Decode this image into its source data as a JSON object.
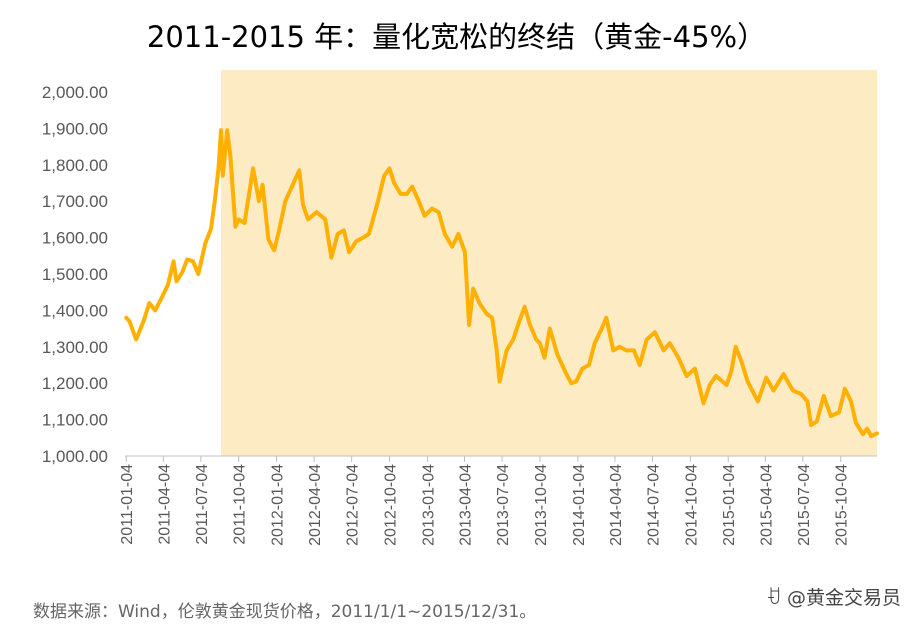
{
  "title": "2011-2015 年：量化宽松的终结（黄金-45%）",
  "source_note": "数据来源：Wind，伦敦黄金现货价格，2011/1/1~2015/12/31。",
  "watermark": "@黄金交易员",
  "colors": {
    "line": "#FFB000",
    "highlight": "#FDEBC4",
    "axis": "#BFBFBF",
    "text": "#595959"
  },
  "chart_data": {
    "type": "line",
    "title": "2011-2015 年：量化宽松的终结（黄金-45%）",
    "xlabel": "",
    "ylabel": "",
    "ylim": [
      1000,
      2000
    ],
    "yticks": [
      1000,
      1100,
      1200,
      1300,
      1400,
      1500,
      1600,
      1700,
      1800,
      1900,
      2000
    ],
    "ytick_labels": [
      "1,000.00",
      "1,100.00",
      "1,200.00",
      "1,300.00",
      "1,400.00",
      "1,500.00",
      "1,600.00",
      "1,700.00",
      "1,800.00",
      "1,900.00",
      "2,000.00"
    ],
    "x_start": "2011-01-01",
    "x_end": "2015-12-31",
    "xtick_labels": [
      "2011-01-04",
      "2011-04-04",
      "2011-07-04",
      "2011-10-04",
      "2012-01-04",
      "2012-04-04",
      "2012-07-04",
      "2012-10-04",
      "2013-01-04",
      "2013-04-04",
      "2013-07-04",
      "2013-10-04",
      "2014-01-04",
      "2014-04-04",
      "2014-07-04",
      "2014-10-04",
      "2015-01-04",
      "2015-04-04",
      "2015-07-04",
      "2015-10-04"
    ],
    "highlight_range": [
      "2011-08-22",
      "2015-12-31"
    ],
    "series": [
      {
        "name": "伦敦黄金现货价格",
        "points": [
          [
            "2011-01-04",
            1380
          ],
          [
            "2011-01-12",
            1370
          ],
          [
            "2011-01-28",
            1320
          ],
          [
            "2011-02-15",
            1370
          ],
          [
            "2011-03-01",
            1420
          ],
          [
            "2011-03-15",
            1400
          ],
          [
            "2011-03-31",
            1435
          ],
          [
            "2011-04-15",
            1470
          ],
          [
            "2011-04-29",
            1535
          ],
          [
            "2011-05-06",
            1480
          ],
          [
            "2011-05-20",
            1505
          ],
          [
            "2011-06-01",
            1540
          ],
          [
            "2011-06-15",
            1535
          ],
          [
            "2011-06-28",
            1500
          ],
          [
            "2011-07-15",
            1585
          ],
          [
            "2011-07-29",
            1625
          ],
          [
            "2011-08-08",
            1710
          ],
          [
            "2011-08-16",
            1790
          ],
          [
            "2011-08-22",
            1895
          ],
          [
            "2011-08-26",
            1770
          ],
          [
            "2011-09-06",
            1895
          ],
          [
            "2011-09-14",
            1820
          ],
          [
            "2011-09-26",
            1630
          ],
          [
            "2011-10-04",
            1650
          ],
          [
            "2011-10-18",
            1640
          ],
          [
            "2011-11-08",
            1790
          ],
          [
            "2011-11-22",
            1700
          ],
          [
            "2011-12-01",
            1745
          ],
          [
            "2011-12-15",
            1595
          ],
          [
            "2011-12-29",
            1565
          ],
          [
            "2012-01-10",
            1620
          ],
          [
            "2012-01-25",
            1700
          ],
          [
            "2012-02-28",
            1785
          ],
          [
            "2012-03-08",
            1690
          ],
          [
            "2012-03-20",
            1650
          ],
          [
            "2012-04-10",
            1670
          ],
          [
            "2012-05-01",
            1650
          ],
          [
            "2012-05-16",
            1545
          ],
          [
            "2012-05-31",
            1610
          ],
          [
            "2012-06-15",
            1620
          ],
          [
            "2012-06-28",
            1560
          ],
          [
            "2012-07-15",
            1590
          ],
          [
            "2012-08-01",
            1600
          ],
          [
            "2012-08-15",
            1610
          ],
          [
            "2012-09-06",
            1700
          ],
          [
            "2012-09-21",
            1770
          ],
          [
            "2012-10-04",
            1790
          ],
          [
            "2012-10-15",
            1750
          ],
          [
            "2012-10-31",
            1720
          ],
          [
            "2012-11-15",
            1720
          ],
          [
            "2012-11-28",
            1740
          ],
          [
            "2012-12-14",
            1700
          ],
          [
            "2012-12-28",
            1660
          ],
          [
            "2013-01-15",
            1680
          ],
          [
            "2013-01-31",
            1670
          ],
          [
            "2013-02-15",
            1610
          ],
          [
            "2013-03-05",
            1575
          ],
          [
            "2013-03-20",
            1610
          ],
          [
            "2013-04-05",
            1560
          ],
          [
            "2013-04-15",
            1360
          ],
          [
            "2013-04-25",
            1460
          ],
          [
            "2013-05-10",
            1420
          ],
          [
            "2013-05-28",
            1390
          ],
          [
            "2013-06-10",
            1380
          ],
          [
            "2013-06-21",
            1290
          ],
          [
            "2013-06-28",
            1205
          ],
          [
            "2013-07-15",
            1290
          ],
          [
            "2013-07-31",
            1320
          ],
          [
            "2013-08-15",
            1370
          ],
          [
            "2013-08-28",
            1410
          ],
          [
            "2013-09-10",
            1360
          ],
          [
            "2013-09-25",
            1320
          ],
          [
            "2013-10-04",
            1310
          ],
          [
            "2013-10-15",
            1270
          ],
          [
            "2013-10-28",
            1350
          ],
          [
            "2013-11-15",
            1280
          ],
          [
            "2013-12-05",
            1230
          ],
          [
            "2013-12-19",
            1200
          ],
          [
            "2013-12-31",
            1205
          ],
          [
            "2014-01-15",
            1240
          ],
          [
            "2014-01-31",
            1250
          ],
          [
            "2014-02-14",
            1310
          ],
          [
            "2014-03-03",
            1350
          ],
          [
            "2014-03-14",
            1380
          ],
          [
            "2014-03-31",
            1290
          ],
          [
            "2014-04-15",
            1300
          ],
          [
            "2014-05-01",
            1290
          ],
          [
            "2014-05-20",
            1290
          ],
          [
            "2014-06-03",
            1250
          ],
          [
            "2014-06-20",
            1320
          ],
          [
            "2014-07-10",
            1340
          ],
          [
            "2014-07-31",
            1290
          ],
          [
            "2014-08-15",
            1310
          ],
          [
            "2014-09-05",
            1270
          ],
          [
            "2014-09-25",
            1220
          ],
          [
            "2014-10-15",
            1240
          ],
          [
            "2014-11-05",
            1145
          ],
          [
            "2014-11-20",
            1195
          ],
          [
            "2014-12-05",
            1220
          ],
          [
            "2014-12-31",
            1195
          ],
          [
            "2015-01-12",
            1235
          ],
          [
            "2015-01-22",
            1300
          ],
          [
            "2015-02-05",
            1260
          ],
          [
            "2015-02-20",
            1205
          ],
          [
            "2015-03-17",
            1150
          ],
          [
            "2015-04-06",
            1215
          ],
          [
            "2015-04-24",
            1180
          ],
          [
            "2015-05-18",
            1225
          ],
          [
            "2015-06-10",
            1180
          ],
          [
            "2015-06-30",
            1170
          ],
          [
            "2015-07-15",
            1150
          ],
          [
            "2015-07-24",
            1085
          ],
          [
            "2015-08-07",
            1095
          ],
          [
            "2015-08-24",
            1165
          ],
          [
            "2015-09-10",
            1110
          ],
          [
            "2015-09-30",
            1120
          ],
          [
            "2015-10-14",
            1185
          ],
          [
            "2015-10-29",
            1150
          ],
          [
            "2015-11-10",
            1090
          ],
          [
            "2015-11-27",
            1060
          ],
          [
            "2015-12-07",
            1075
          ],
          [
            "2015-12-17",
            1055
          ],
          [
            "2015-12-31",
            1062
          ]
        ]
      }
    ]
  }
}
